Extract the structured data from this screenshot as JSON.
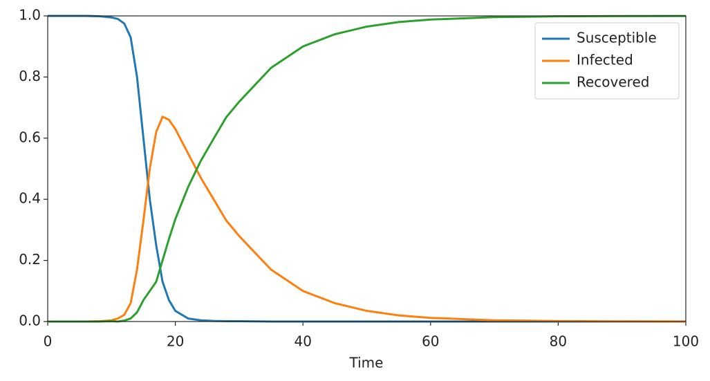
{
  "chart_data": {
    "type": "line",
    "xlabel": "Time",
    "x": [
      0,
      2,
      4,
      6,
      8,
      10,
      11,
      12,
      13,
      14,
      15,
      16,
      17,
      18,
      19,
      20,
      22,
      24,
      26,
      28,
      30,
      35,
      40,
      45,
      50,
      55,
      60,
      70,
      80,
      90,
      100
    ],
    "series": [
      {
        "name": "Susceptible",
        "color": "#1f77b4",
        "values": [
          1,
          1,
          1,
          1,
          0.999,
          0.995,
          0.99,
          0.975,
          0.93,
          0.8,
          0.6,
          0.4,
          0.25,
          0.13,
          0.07,
          0.035,
          0.01,
          0.004,
          0.002,
          0.001,
          0.001,
          0,
          0,
          0,
          0,
          0,
          0,
          0,
          0,
          0,
          0
        ]
      },
      {
        "name": "Infected",
        "color": "#ff7f0e",
        "values": [
          0,
          0,
          0,
          0,
          0.001,
          0.004,
          0.01,
          0.022,
          0.06,
          0.17,
          0.33,
          0.5,
          0.62,
          0.67,
          0.66,
          0.63,
          0.55,
          0.47,
          0.4,
          0.33,
          0.28,
          0.17,
          0.1,
          0.06,
          0.035,
          0.02,
          0.012,
          0.004,
          0.0015,
          0.0005,
          0.0002
        ]
      },
      {
        "name": "Recovered",
        "color": "#2ca02c",
        "values": [
          0,
          0,
          0,
          0,
          0,
          0.001,
          0,
          0.003,
          0.01,
          0.03,
          0.07,
          0.1,
          0.13,
          0.2,
          0.27,
          0.335,
          0.44,
          0.526,
          0.598,
          0.669,
          0.719,
          0.83,
          0.9,
          0.94,
          0.965,
          0.98,
          0.988,
          0.996,
          0.9985,
          0.9995,
          0.9998
        ]
      }
    ],
    "xlim": [
      0,
      100
    ],
    "xticks": [
      0,
      20,
      40,
      60,
      80,
      100
    ],
    "ylim": [
      0,
      1
    ],
    "yticks": [
      {
        "value": 0,
        "label": "0.0"
      },
      {
        "value": 0.2,
        "label": "0.2"
      },
      {
        "value": 0.4,
        "label": "0.4"
      },
      {
        "value": 0.6,
        "label": "0.6"
      },
      {
        "value": 0.8,
        "label": "0.8"
      },
      {
        "value": 1,
        "label": "1.0"
      }
    ],
    "legend": "upper right"
  }
}
